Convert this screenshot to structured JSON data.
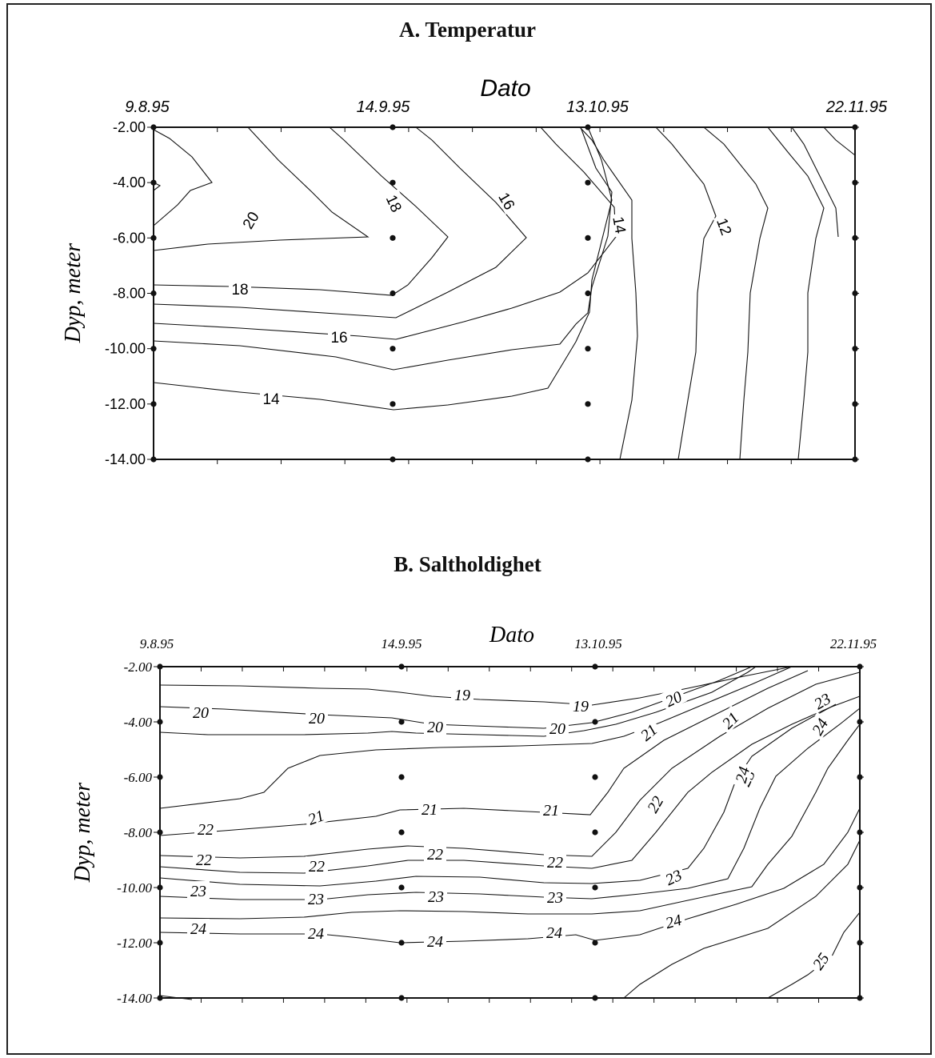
{
  "chart_data": [
    {
      "type": "contour",
      "title": "A. Temperatur",
      "xlabel": "Dato",
      "ylabel": "Dyp, meter",
      "x_ticks": [
        "9.8.95",
        "14.9.95",
        "13.10.95",
        "22.11.95"
      ],
      "y_ticks": [
        "-2.00",
        "-4.00",
        "-6.00",
        "-8.00",
        "-10.00",
        "-12.00",
        "-14.00"
      ],
      "ylim": [
        -14,
        -2
      ],
      "sample_dates": [
        "9.8.95",
        "14.9.95",
        "13.10.95",
        "22.11.95"
      ],
      "sample_depths": [
        -2,
        -4,
        -6,
        -8,
        -10,
        -12,
        -14
      ],
      "contour_labels": [
        "20",
        "18",
        "18",
        "16",
        "16",
        "14",
        "14",
        "12"
      ],
      "contour_levels": [
        12,
        14,
        16,
        18,
        20
      ]
    },
    {
      "type": "contour",
      "title": "B. Saltholdighet",
      "xlabel": "Dato",
      "ylabel": "Dyp, meter",
      "x_ticks": [
        "9.8.95",
        "14.9.95",
        "13.10.95",
        "22.11.95"
      ],
      "y_ticks": [
        "-2.00",
        "-4.00",
        "-6.00",
        "-8.00",
        "-10.00",
        "-12.00",
        "-14.00"
      ],
      "ylim": [
        -14,
        -2
      ],
      "sample_dates": [
        "9.8.95",
        "14.9.95",
        "13.10.95",
        "22.11.95"
      ],
      "sample_depths": [
        -2,
        -4,
        -6,
        -8,
        -10,
        -12,
        -14
      ],
      "contour_labels": [
        "19",
        "19",
        "20",
        "20",
        "20",
        "20",
        "20",
        "21",
        "21",
        "21",
        "21",
        "21",
        "22",
        "22",
        "22",
        "22",
        "22",
        "22",
        "23",
        "23",
        "23",
        "23",
        "23",
        "23",
        "23",
        "24",
        "24",
        "24",
        "24",
        "24",
        "24",
        "24",
        "25"
      ],
      "contour_levels": [
        19,
        20,
        21,
        22,
        23,
        24,
        25
      ]
    }
  ]
}
